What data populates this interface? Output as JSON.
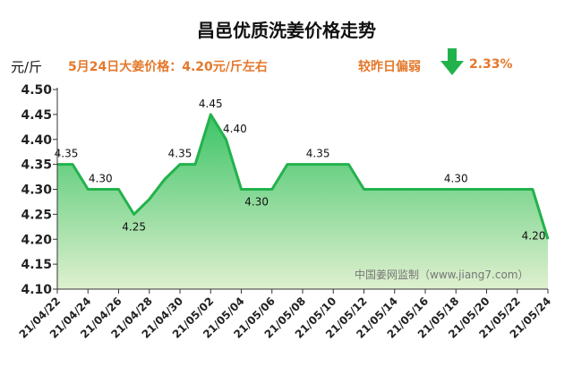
{
  "header": {
    "title": "昌邑优质洗姜价格走势",
    "unit": "元/斤",
    "price_note": "5月24日大姜价格：4.20元/斤左右",
    "change_label": "较昨日偏弱",
    "change_pct": "2.33%",
    "change_direction": "down"
  },
  "watermark": "中国姜网监制（www.jiang7.com）",
  "colors": {
    "line": "#22b24c",
    "fill_top": "#3cc466",
    "fill_bottom": "#dff0cf",
    "accent_text": "#e4782b",
    "arrow": "#22b24c"
  },
  "chart_data": {
    "type": "area",
    "title": "昌邑优质洗姜价格走势",
    "ylabel": "元/斤",
    "ylim": [
      4.1,
      4.5
    ],
    "yticks": [
      "4.10",
      "4.15",
      "4.20",
      "4.25",
      "4.30",
      "4.35",
      "4.40",
      "4.45",
      "4.50"
    ],
    "xticks": [
      "21/04/22",
      "21/04/24",
      "21/04/26",
      "21/04/28",
      "21/04/30",
      "21/05/02",
      "21/05/04",
      "21/05/06",
      "21/05/08",
      "21/05/10",
      "21/05/12",
      "21/05/14",
      "21/05/16",
      "21/05/18",
      "21/05/20",
      "21/05/22",
      "21/05/24"
    ],
    "grid": false,
    "series": [
      {
        "points": [
          {
            "x": "21/04/22",
            "y": 4.35
          },
          {
            "x": "21/04/23",
            "y": 4.35
          },
          {
            "x": "21/04/24",
            "y": 4.3
          },
          {
            "x": "21/04/25",
            "y": 4.3
          },
          {
            "x": "21/04/26",
            "y": 4.3
          },
          {
            "x": "21/04/27",
            "y": 4.25
          },
          {
            "x": "21/04/28",
            "y": 4.28
          },
          {
            "x": "21/04/29",
            "y": 4.32
          },
          {
            "x": "21/04/30",
            "y": 4.35
          },
          {
            "x": "21/05/01",
            "y": 4.35
          },
          {
            "x": "21/05/02",
            "y": 4.45
          },
          {
            "x": "21/05/03",
            "y": 4.4
          },
          {
            "x": "21/05/04",
            "y": 4.3
          },
          {
            "x": "21/05/05",
            "y": 4.3
          },
          {
            "x": "21/05/06",
            "y": 4.3
          },
          {
            "x": "21/05/07",
            "y": 4.35
          },
          {
            "x": "21/05/08",
            "y": 4.35
          },
          {
            "x": "21/05/09",
            "y": 4.35
          },
          {
            "x": "21/05/10",
            "y": 4.35
          },
          {
            "x": "21/05/11",
            "y": 4.35
          },
          {
            "x": "21/05/12",
            "y": 4.3
          },
          {
            "x": "21/05/13",
            "y": 4.3
          },
          {
            "x": "21/05/14",
            "y": 4.3
          },
          {
            "x": "21/05/15",
            "y": 4.3
          },
          {
            "x": "21/05/16",
            "y": 4.3
          },
          {
            "x": "21/05/17",
            "y": 4.3
          },
          {
            "x": "21/05/18",
            "y": 4.3
          },
          {
            "x": "21/05/19",
            "y": 4.3
          },
          {
            "x": "21/05/20",
            "y": 4.3
          },
          {
            "x": "21/05/21",
            "y": 4.3
          },
          {
            "x": "21/05/22",
            "y": 4.3
          },
          {
            "x": "21/05/23",
            "y": 4.3
          },
          {
            "x": "21/05/24",
            "y": 4.2
          }
        ]
      }
    ],
    "data_labels": [
      {
        "x": "21/04/22",
        "y": 4.35,
        "text": "4.35"
      },
      {
        "x": "21/04/24",
        "y": 4.3,
        "text": "4.30"
      },
      {
        "x": "21/04/27",
        "y": 4.25,
        "text": "4.25"
      },
      {
        "x": "21/04/30",
        "y": 4.35,
        "text": "4.35"
      },
      {
        "x": "21/05/02",
        "y": 4.45,
        "text": "4.45"
      },
      {
        "x": "21/05/03",
        "y": 4.4,
        "text": "4.40"
      },
      {
        "x": "21/05/05",
        "y": 4.3,
        "text": "4.30"
      },
      {
        "x": "21/05/09",
        "y": 4.35,
        "text": "4.35"
      },
      {
        "x": "21/05/18",
        "y": 4.3,
        "text": "4.30"
      },
      {
        "x": "21/05/24",
        "y": 4.2,
        "text": "4.20"
      }
    ]
  }
}
